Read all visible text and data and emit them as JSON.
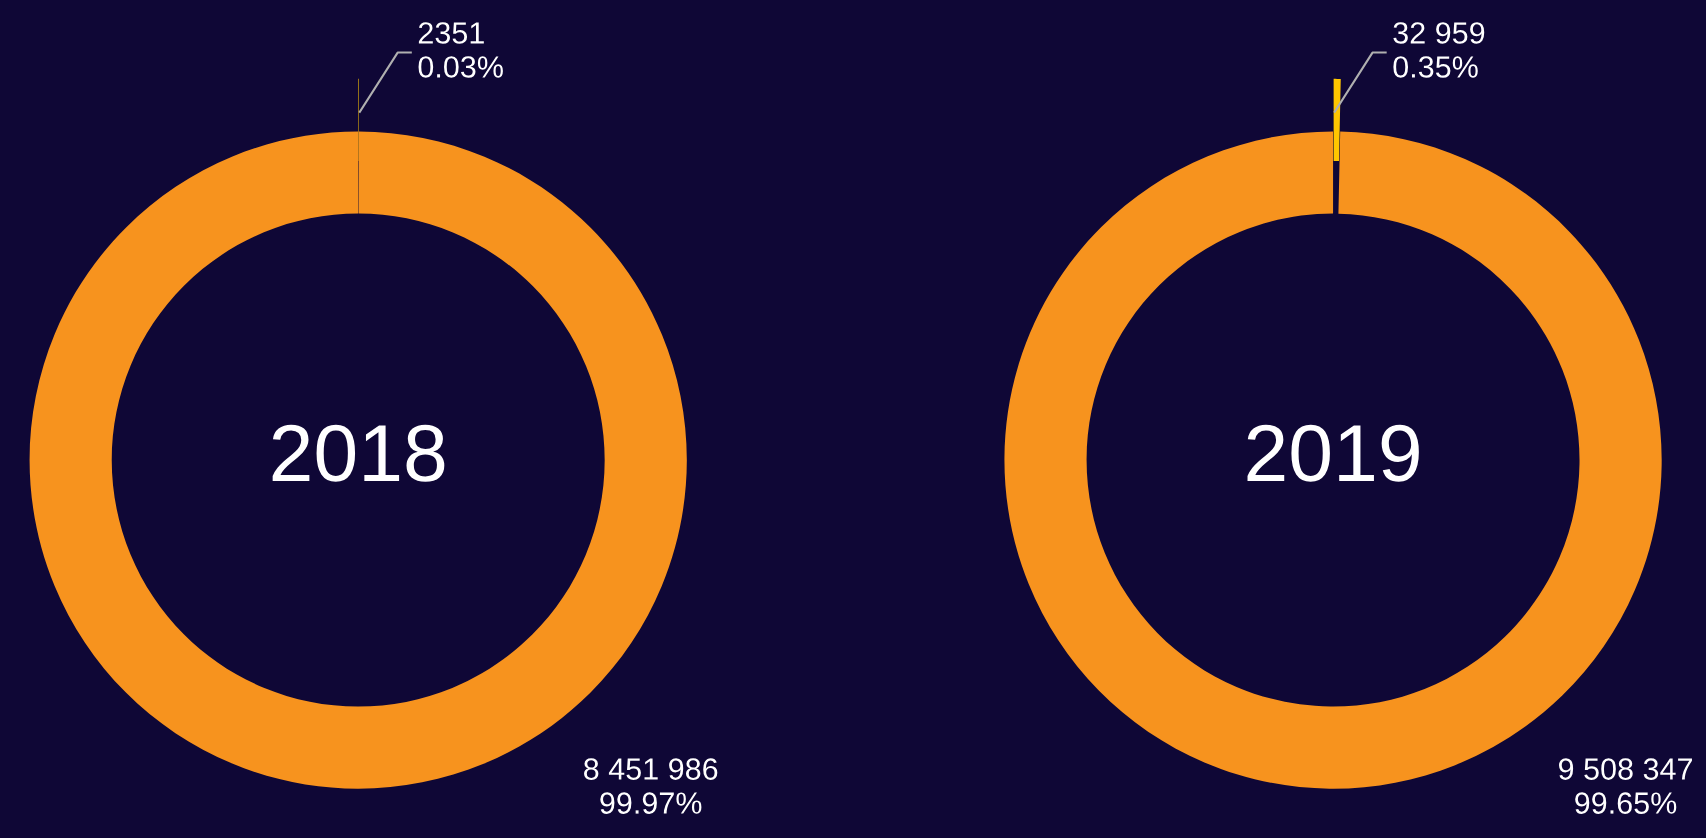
{
  "chart_data": [
    {
      "type": "donut",
      "title": "2018",
      "categories": [
        null,
        null
      ],
      "values": [
        2351,
        8451986
      ],
      "colors": [
        "#ffc600",
        "#f7931e"
      ],
      "value_labels": [
        "2351\n0.03%",
        "8 451 986\n99.97%"
      ]
    },
    {
      "type": "donut",
      "title": "2019",
      "categories": [
        null,
        null
      ],
      "values": [
        32959,
        9508347
      ],
      "colors": [
        "#ffc600",
        "#f7931e"
      ],
      "value_labels": [
        "32 959\n0.35%",
        "9 508 347\n99.65%"
      ]
    }
  ]
}
